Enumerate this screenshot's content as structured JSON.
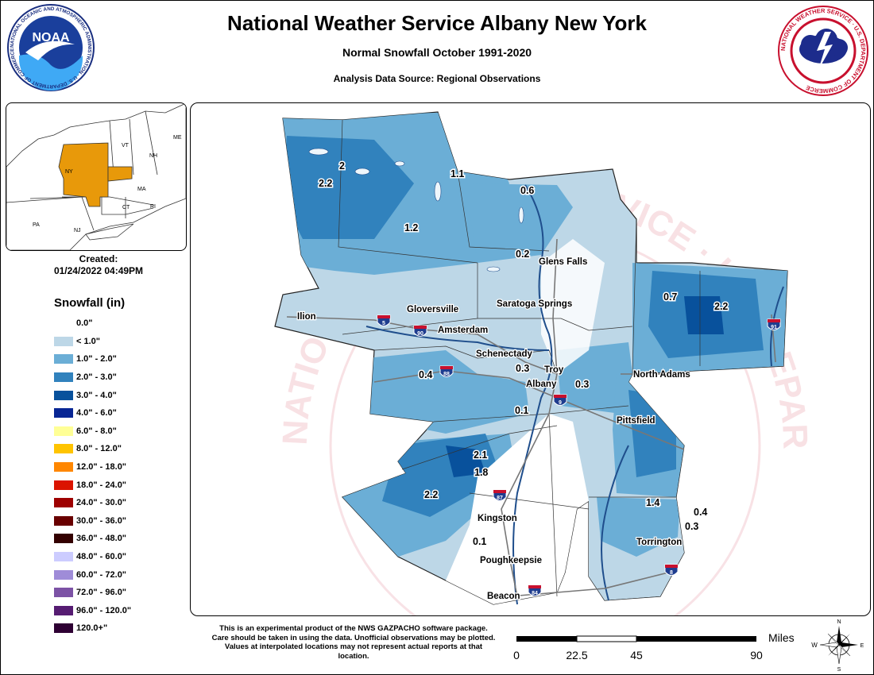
{
  "header": {
    "title": "National Weather Service Albany New York",
    "subtitle": "Normal Snowfall October 1991-2020",
    "source": "Analysis Data Source: Regional Observations"
  },
  "logos": {
    "noaa": {
      "text": "NOAA",
      "ring": "NATIONAL OCEANIC AND ATMOSPHERIC ADMINISTRATION · U.S. DEPARTMENT OF COMMERCE"
    },
    "nws": {
      "ring": "NATIONAL WEATHER SERVICE · U.S. DEPARTMENT OF COMMERCE"
    }
  },
  "inset": {
    "labels": [
      "VT",
      "NH",
      "ME",
      "NY",
      "MA",
      "CT",
      "RI",
      "PA",
      "NJ"
    ]
  },
  "created": {
    "label": "Created:",
    "value": "01/24/2022 04:49PM"
  },
  "legend": {
    "title": "Snowfall (in)",
    "items": [
      {
        "label": "0.0\"",
        "color": "#ffffff"
      },
      {
        "label": "< 1.0\"",
        "color": "#bdd7e7"
      },
      {
        "label": "1.0\" - 2.0\"",
        "color": "#6baed6"
      },
      {
        "label": "2.0\" - 3.0\"",
        "color": "#3182bd"
      },
      {
        "label": "3.0\" - 4.0\"",
        "color": "#08519c"
      },
      {
        "label": "4.0\" - 6.0\"",
        "color": "#082694"
      },
      {
        "label": "6.0\" - 8.0\"",
        "color": "#ffff96"
      },
      {
        "label": "8.0\" - 12.0\"",
        "color": "#ffc400"
      },
      {
        "label": "12.0\" - 18.0\"",
        "color": "#ff8700"
      },
      {
        "label": "18.0\" - 24.0\"",
        "color": "#db1400"
      },
      {
        "label": "24.0\" - 30.0\"",
        "color": "#9e0000"
      },
      {
        "label": "30.0\" - 36.0\"",
        "color": "#690000"
      },
      {
        "label": "36.0\" - 48.0\"",
        "color": "#330000"
      },
      {
        "label": "48.0\" - 60.0\"",
        "color": "#ccccff"
      },
      {
        "label": "60.0\" - 72.0\"",
        "color": "#9f8cd8"
      },
      {
        "label": "72.0\" - 96.0\"",
        "color": "#7c52a5"
      },
      {
        "label": "96.0\" - 120.0\"",
        "color": "#561c72"
      },
      {
        "label": "120.0+\"",
        "color": "#2e0033"
      }
    ]
  },
  "map": {
    "cities": [
      "Glens Falls",
      "Saratoga Springs",
      "Gloversville",
      "Ilion",
      "Amsterdam",
      "Schenectady",
      "Troy",
      "Albany",
      "North Adams",
      "Pittsfield",
      "Kingston",
      "Poughkeepsie",
      "Beacon",
      "Torrington"
    ],
    "values": [
      "2",
      "2.2",
      "1.1",
      "0.6",
      "1.2",
      "0.2",
      "0.7",
      "2.2",
      "0.4",
      "0.3",
      "0.3",
      "0.1",
      "2.1",
      "1.8",
      "2.2",
      "1.4",
      "0.4",
      "0.3",
      "0.1"
    ],
    "shields": [
      "5",
      "90",
      "88",
      "9",
      "87",
      "91",
      "8",
      "84"
    ],
    "watermark": "NATIONAL WEATHER SERVICE · U.S. DEPARTMENT OF COMMERCE"
  },
  "disclaimer": "This is an experimental product of the NWS GAZPACHO software package. Care should be taken in using the data. Unofficial observations may be plotted. Values at interpolated locations may not represent actual reports at that location.",
  "scale": {
    "unit": "Miles",
    "ticks": [
      "0",
      "22.5",
      "45",
      "90"
    ]
  },
  "compass": {
    "n": "N",
    "s": "S",
    "e": "E",
    "w": "W"
  }
}
